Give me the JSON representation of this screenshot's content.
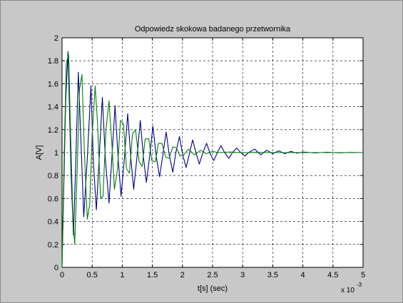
{
  "chart_data": {
    "type": "line",
    "title": "Odpowiedz skokowa badanego przetwornika",
    "xlabel": "t[s] (sec)",
    "ylabel": "A[V]",
    "x_exponent_label": "x 10",
    "x_exponent_power": "-3",
    "xlim": [
      0,
      5
    ],
    "ylim": [
      0,
      2
    ],
    "xticks": [
      0,
      0.5,
      1,
      1.5,
      2,
      2.5,
      3,
      3.5,
      4,
      4.5,
      5
    ],
    "xtick_labels": [
      "0",
      "0.5",
      "1",
      "1.5",
      "2",
      "2.5",
      "3",
      "3.5",
      "4",
      "4.5",
      "5"
    ],
    "yticks": [
      0,
      0.2,
      0.4,
      0.6,
      0.8,
      1,
      1.2,
      1.4,
      1.6,
      1.8,
      2
    ],
    "ytick_labels": [
      "0",
      "0.2",
      "0.4",
      "0.6",
      "0.8",
      "1",
      "1.2",
      "1.4",
      "1.6",
      "1.8",
      "2"
    ],
    "grid": true,
    "series": [
      {
        "color": "#00008b",
        "x": [
          0,
          0.06,
          0.1,
          0.15,
          0.19,
          0.23,
          0.27,
          0.32,
          0.36,
          0.42,
          0.48,
          0.52,
          0.57,
          0.62,
          0.67,
          0.72,
          0.78,
          0.83,
          0.88,
          0.93,
          0.98,
          1.04,
          1.09,
          1.14,
          1.19,
          1.25,
          1.3,
          1.35,
          1.4,
          1.46,
          1.51,
          1.56,
          1.62,
          1.68,
          1.73,
          1.78,
          1.84,
          1.89,
          1.95,
          2.0,
          2.06,
          2.12,
          2.17,
          2.23,
          2.28,
          2.34,
          2.4,
          2.46,
          2.52,
          2.58,
          2.64,
          2.7,
          2.77,
          2.83,
          2.9,
          2.97,
          3.04,
          3.1,
          3.2,
          3.3,
          3.4,
          3.5,
          3.6,
          3.7,
          3.8,
          3.9,
          4.0,
          4.2,
          4.4,
          4.6,
          4.8,
          5.0
        ],
        "y": [
          0,
          1.45,
          1.88,
          0.8,
          0.28,
          0.95,
          1.7,
          1.02,
          0.44,
          0.95,
          1.58,
          0.92,
          0.5,
          0.98,
          1.48,
          0.94,
          0.56,
          0.98,
          1.41,
          0.96,
          0.62,
          0.98,
          1.34,
          0.97,
          0.68,
          0.99,
          1.28,
          0.97,
          0.74,
          0.99,
          1.23,
          0.98,
          0.79,
          1.0,
          1.18,
          0.98,
          0.83,
          1.0,
          1.14,
          0.99,
          0.87,
          1.0,
          1.11,
          0.99,
          0.9,
          1.0,
          1.08,
          0.99,
          0.93,
          1.0,
          1.06,
          1.0,
          0.95,
          1.0,
          1.04,
          1.0,
          0.97,
          1.0,
          1.03,
          0.98,
          1.02,
          0.99,
          1.015,
          0.99,
          1.01,
          0.995,
          1.005,
          0.997,
          1.003,
          0.998,
          1.001,
          1.0
        ]
      },
      {
        "color": "#008000",
        "x": [
          0,
          0.04,
          0.07,
          0.11,
          0.14,
          0.18,
          0.21,
          0.25,
          0.29,
          0.33,
          0.37,
          0.42,
          0.46,
          0.5,
          0.55,
          0.59,
          0.64,
          0.68,
          0.73,
          0.78,
          0.83,
          0.87,
          0.92,
          0.97,
          1.02,
          1.07,
          1.12,
          1.17,
          1.22,
          1.28,
          1.33,
          1.38,
          1.44,
          1.49,
          1.55,
          1.6,
          1.66,
          1.72,
          1.78,
          1.84,
          1.9,
          1.96,
          2.02,
          2.1,
          2.2,
          2.3,
          2.4,
          2.5,
          2.6,
          2.8,
          3.0,
          3.2,
          3.5,
          4.0,
          5.0
        ],
        "y": [
          0,
          1.1,
          1.78,
          1.85,
          1.2,
          0.45,
          0.2,
          0.82,
          1.55,
          1.68,
          1.02,
          0.42,
          0.55,
          1.15,
          1.58,
          1.25,
          0.6,
          0.62,
          1.2,
          1.45,
          1.05,
          0.68,
          0.85,
          1.28,
          1.25,
          0.86,
          0.82,
          1.16,
          1.2,
          0.92,
          0.88,
          1.12,
          1.12,
          0.93,
          0.92,
          1.08,
          1.08,
          0.96,
          0.95,
          1.05,
          1.04,
          0.97,
          0.98,
          1.03,
          0.98,
          1.02,
          0.99,
          1.01,
          1.0,
          1.005,
          0.998,
          1.002,
          1.0,
          1.0,
          1.0
        ]
      }
    ]
  }
}
